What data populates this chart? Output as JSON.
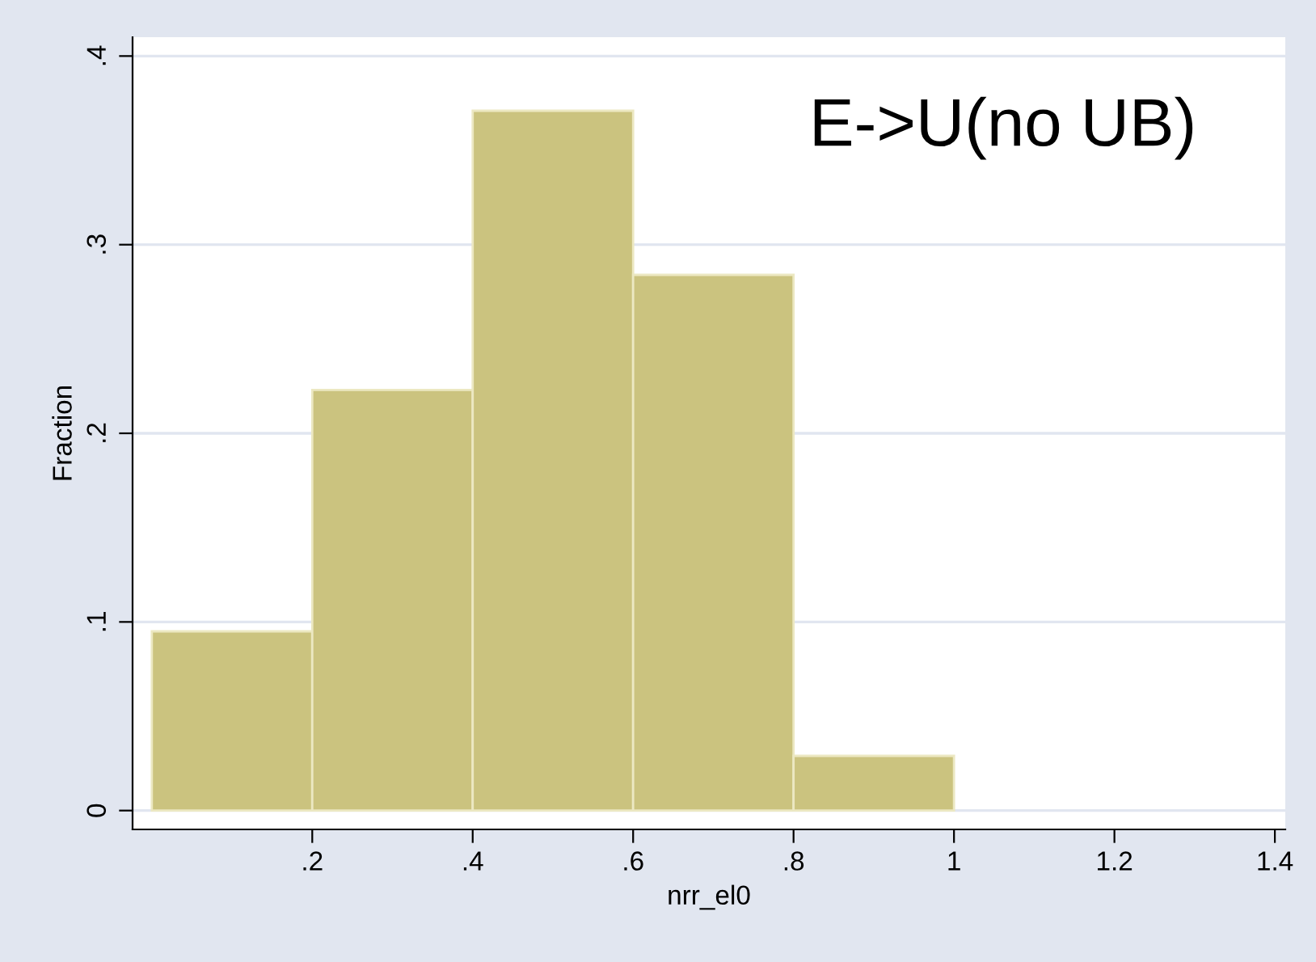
{
  "chart_data": {
    "type": "histogram",
    "xlabel": "nrr_el0",
    "ylabel": "Fraction",
    "bins": [
      0,
      0.2,
      0.4,
      0.6,
      0.8,
      1.0
    ],
    "values": [
      0.095,
      0.223,
      0.371,
      0.284,
      0.029
    ],
    "color": "#cbc37f",
    "xlim": [
      -0.024,
      1.413
    ],
    "ylim": [
      -0.01,
      0.41
    ],
    "xticks": [
      {
        "value": 0.2,
        "label": ".2"
      },
      {
        "value": 0.4,
        "label": ".4"
      },
      {
        "value": 0.6,
        "label": ".6"
      },
      {
        "value": 0.8,
        "label": ".8"
      },
      1,
      1.2,
      1.4
    ],
    "yticks": [
      0,
      {
        "value": 0.1,
        "label": ".1"
      },
      {
        "value": 0.2,
        "label": ".2"
      },
      {
        "value": 0.3,
        "label": ".3"
      },
      {
        "value": 0.4,
        "label": ".4"
      }
    ],
    "grid": "y",
    "legend": false,
    "annotations": [
      "E->U(no UB)"
    ]
  }
}
